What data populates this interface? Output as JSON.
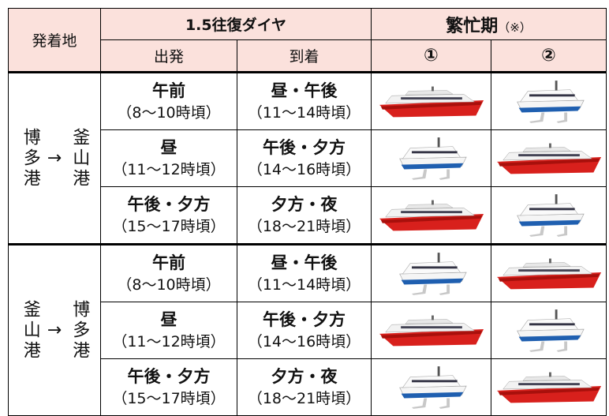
{
  "header": {
    "origin": "発着地",
    "schedule": "1.5往復ダイヤ",
    "departure": "出発",
    "arrival": "到着",
    "peak": "繁忙期",
    "peak_note": "（※）",
    "peak_1": "①",
    "peak_2": "②"
  },
  "groups": [
    {
      "from": "博多港",
      "arrow": "→",
      "to": "釜山港",
      "rows": [
        {
          "departure": "午前",
          "departure_time": "（8～10時頃）",
          "arrival": "昼・午後",
          "arrival_time": "（11～14時頃）"
        },
        {
          "departure": "昼",
          "departure_time": "（11～12時頃）",
          "arrival": "午後・夕方",
          "arrival_time": "（14～16時頃）"
        },
        {
          "departure": "午後・夕方",
          "departure_time": "（15～17時頃）",
          "arrival": "夕方・夜",
          "arrival_time": "（18～21時頃）"
        }
      ]
    },
    {
      "from": "釜山港",
      "arrow": "→",
      "to": "博多港",
      "rows": [
        {
          "departure": "午前",
          "departure_time": "（8～10時頃）",
          "arrival": "昼・午後",
          "arrival_time": "（11～14時頃）"
        },
        {
          "departure": "昼",
          "departure_time": "（11～12時頃）",
          "arrival": "午後・夕方",
          "arrival_time": "（14～16時頃）"
        },
        {
          "departure": "午後・夕方",
          "departure_time": "（15～17時頃）",
          "arrival": "夕方・夜",
          "arrival_time": "（18～21時頃）"
        }
      ]
    }
  ]
}
